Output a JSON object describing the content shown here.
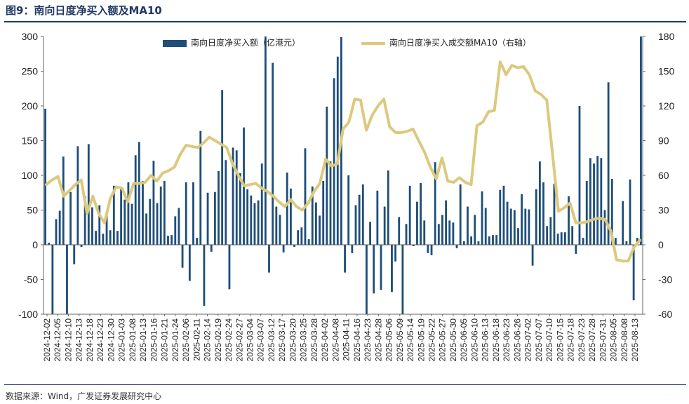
{
  "header": {
    "title": "图9：南向日度净买入额及MA10"
  },
  "footer": {
    "source": "数据来源：Wind，广发证券发展研究中心"
  },
  "chart_data": {
    "type": "bar+line",
    "title": "图9：南向日度净买入额及MA10",
    "legend_position": "top",
    "grid": false,
    "colors": {
      "bar": "#1f4e79",
      "line": "#dcc97e",
      "title": "#1f3864"
    },
    "y_left": {
      "ylim": [
        -100,
        300
      ],
      "ticks": [
        -100,
        -50,
        0,
        50,
        100,
        150,
        200,
        250,
        300
      ]
    },
    "y_right": {
      "ylim": [
        -60,
        180
      ],
      "ticks": [
        -60,
        -30,
        0,
        30,
        60,
        90,
        120,
        150,
        180
      ]
    },
    "x_tick_labels": [
      "2024-12-02",
      "2024-12-05",
      "2024-12-10",
      "2024-12-13",
      "2024-12-18",
      "2024-12-23",
      "2024-12-30",
      "2025-01-03",
      "2025-01-08",
      "2025-01-13",
      "2025-01-16",
      "2025-01-21",
      "2025-01-24",
      "2025-02-06",
      "2025-02-11",
      "2025-02-14",
      "2025-02-19",
      "2025-02-24",
      "2025-02-27",
      "2025-03-04",
      "2025-03-07",
      "2025-03-12",
      "2025-03-17",
      "2025-03-20",
      "2025-03-25",
      "2025-03-28",
      "2025-04-02",
      "2025-04-08",
      "2025-04-11",
      "2025-04-16",
      "2025-04-23",
      "2025-04-28",
      "2025-05-06",
      "2025-05-09",
      "2025-05-14",
      "2025-05-19",
      "2025-05-22",
      "2025-05-27",
      "2025-05-30",
      "2025-06-05",
      "2025-06-10",
      "2025-06-13",
      "2025-06-18",
      "2025-06-23",
      "2025-06-26",
      "2025-07-02",
      "2025-07-07",
      "2025-07-10",
      "2025-07-15",
      "2025-07-18",
      "2025-07-23",
      "2025-07-28",
      "2025-07-31",
      "2025-08-05",
      "2025-08-08",
      "2025-08-13"
    ],
    "series": [
      {
        "name": "南向日度净买入额（亿港元）",
        "type": "bar",
        "axis": "left",
        "values": [
          196,
          3,
          -100,
          37,
          49,
          127,
          -100,
          76,
          -28,
          142,
          -3,
          70,
          145,
          54,
          20,
          57,
          16,
          47,
          21,
          85,
          20,
          80,
          65,
          90,
          59,
          129,
          148,
          92,
          45,
          66,
          121,
          60,
          84,
          92,
          13,
          14,
          41,
          53,
          -33,
          90,
          -52,
          90,
          10,
          164,
          -88,
          75,
          -10,
          76,
          106,
          223,
          122,
          -64,
          140,
          136,
          103,
          169,
          80,
          71,
          60,
          64,
          117,
          300,
          -40,
          262,
          55,
          43,
          -11,
          104,
          81,
          -3,
          21,
          25,
          139,
          8,
          84,
          61,
          42,
          92,
          199,
          120,
          240,
          271,
          299,
          -40,
          100,
          -12,
          57,
          72,
          87,
          -100,
          33,
          -70,
          78,
          -65,
          55,
          107,
          -68,
          -24,
          40,
          -100,
          30,
          85,
          -2,
          62,
          89,
          35,
          -12,
          -15,
          119,
          30,
          43,
          64,
          35,
          32,
          -5,
          87,
          5,
          55,
          12,
          43,
          5,
          77,
          53,
          12,
          14,
          14,
          79,
          85,
          62,
          52,
          50,
          24,
          73,
          52,
          51,
          -30,
          80,
          120,
          90,
          27,
          40,
          88,
          16,
          18,
          18,
          70,
          27,
          -13,
          200,
          10,
          92,
          125,
          117,
          128,
          125,
          50,
          234,
          95,
          10,
          0,
          63,
          5,
          94,
          -80,
          10,
          300
        ]
      },
      {
        "name": "南向日度净买入成交额MA10（右轴）",
        "type": "line",
        "axis": "right",
        "values": [
          52,
          56,
          59,
          42,
          47,
          52,
          56,
          27,
          42,
          27,
          19,
          40,
          50,
          49,
          37,
          53,
          53,
          54,
          60,
          55,
          62,
          64,
          67,
          78,
          86,
          85,
          84,
          88,
          93,
          90,
          87,
          84,
          70,
          60,
          51,
          52,
          53,
          49,
          46,
          42,
          37,
          33,
          39,
          33,
          30,
          36,
          46,
          53,
          74,
          68,
          70,
          100,
          106,
          126,
          125,
          99,
          112,
          120,
          126,
          102,
          97,
          97,
          98,
          100,
          90,
          80,
          67,
          57,
          75,
          55,
          54,
          58,
          54,
          52,
          103,
          106,
          115,
          116,
          158,
          147,
          155,
          153,
          154,
          147,
          133,
          130,
          125,
          78,
          29,
          32,
          36,
          19,
          19,
          20,
          22,
          23,
          22,
          12,
          -13,
          -14,
          -14,
          -2,
          4
        ]
      }
    ]
  }
}
